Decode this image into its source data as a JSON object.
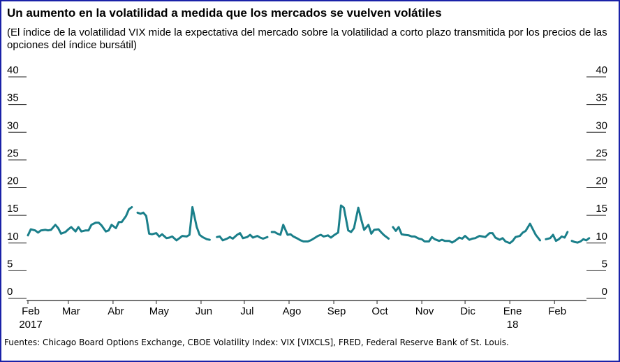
{
  "header": {
    "title": "Un aumento en la volatilidad a medida que los mercados se vuelven volátiles",
    "subtitle": "(El índice de la volatilidad VIX mide la expectativa del mercado sobre la volatilidad a corto plazo transmitida por los precios de las opciones del índice bursátil)"
  },
  "footer": {
    "source": "Fuentes: Chicago Board Options Exchange, CBOE Volatility Index: VIX [VIXCLS], FRED, Federal Reserve Bank of St. Louis."
  },
  "colors": {
    "line": "#1a7f8a",
    "axis": "#222222",
    "border": "#1a22a8"
  },
  "chart_data": {
    "type": "line",
    "ylim": [
      0,
      40
    ],
    "yticks": [
      0,
      5,
      10,
      15,
      20,
      25,
      30,
      35,
      40
    ],
    "grid": false,
    "x_label_rows": [
      [
        "Feb",
        "Mar",
        "Abr",
        "May",
        "Jun",
        "Jul",
        "Ago",
        "Sep",
        "Oct",
        "Nov",
        "Dic",
        "Ene",
        "Feb"
      ],
      [
        "2017",
        "",
        "",
        "",
        "",
        "",
        "",
        "",
        "",
        "",
        "",
        "18",
        ""
      ]
    ],
    "x_tick_dates": [
      "2017-02-01",
      "2017-03-01",
      "2017-04-01",
      "2017-05-01",
      "2017-06-01",
      "2017-07-01",
      "2017-08-01",
      "2017-09-01",
      "2017-10-01",
      "2017-11-01",
      "2017-12-01",
      "2018-01-01",
      "2018-02-01"
    ],
    "xlim": [
      "2017-02-01",
      "2018-02-28"
    ],
    "series": [
      {
        "values": [
          [
            "2017-02-01",
            10.5
          ],
          [
            "2017-02-03",
            11.6
          ],
          [
            "2017-02-06",
            11.4
          ],
          [
            "2017-02-08",
            11.0
          ],
          [
            "2017-02-10",
            11.4
          ],
          [
            "2017-02-13",
            11.5
          ],
          [
            "2017-02-15",
            11.4
          ],
          [
            "2017-02-17",
            11.5
          ],
          [
            "2017-02-20",
            12.4
          ],
          [
            "2017-02-22",
            11.8
          ],
          [
            "2017-02-24",
            10.8
          ],
          [
            "2017-02-27",
            11.1
          ],
          [
            "2017-03-01",
            11.6
          ],
          [
            "2017-03-03",
            12.0
          ],
          [
            "2017-03-06",
            11.2
          ],
          [
            "2017-03-08",
            12.0
          ],
          [
            "2017-03-10",
            11.2
          ],
          [
            "2017-03-13",
            11.4
          ],
          [
            "2017-03-15",
            11.4
          ],
          [
            "2017-03-17",
            12.4
          ],
          [
            "2017-03-20",
            12.8
          ],
          [
            "2017-03-22",
            12.8
          ],
          [
            "2017-03-24",
            12.3
          ],
          [
            "2017-03-27",
            11.2
          ],
          [
            "2017-03-29",
            11.4
          ],
          [
            "2017-03-31",
            12.4
          ],
          [
            "2017-04-03",
            11.8
          ],
          [
            "2017-04-05",
            12.9
          ],
          [
            "2017-04-07",
            12.9
          ],
          [
            "2017-04-10",
            14.0
          ],
          [
            "2017-04-12",
            15.2
          ],
          [
            "2017-04-14",
            15.6
          ],
          null,
          [
            "2017-04-18",
            14.6
          ],
          [
            "2017-04-20",
            14.4
          ],
          [
            "2017-04-22",
            14.6
          ],
          [
            "2017-04-24",
            14.0
          ],
          [
            "2017-04-26",
            10.8
          ],
          [
            "2017-04-28",
            10.7
          ],
          [
            "2017-05-01",
            10.9
          ],
          [
            "2017-05-03",
            10.3
          ],
          [
            "2017-05-05",
            10.7
          ],
          [
            "2017-05-08",
            10.0
          ],
          [
            "2017-05-10",
            10.1
          ],
          [
            "2017-05-12",
            10.3
          ],
          [
            "2017-05-15",
            9.6
          ],
          [
            "2017-05-17",
            10.0
          ],
          [
            "2017-05-19",
            10.4
          ],
          [
            "2017-05-22",
            10.3
          ],
          [
            "2017-05-24",
            10.6
          ],
          [
            "2017-05-26",
            15.6
          ],
          [
            "2017-05-29",
            12.0
          ],
          [
            "2017-05-31",
            10.6
          ],
          [
            "2017-06-02",
            10.2
          ],
          [
            "2017-06-05",
            9.8
          ],
          [
            "2017-06-07",
            9.7
          ],
          null,
          [
            "2017-06-12",
            10.2
          ],
          [
            "2017-06-14",
            10.3
          ],
          [
            "2017-06-16",
            9.6
          ],
          [
            "2017-06-19",
            9.9
          ],
          [
            "2017-06-21",
            10.2
          ],
          [
            "2017-06-23",
            9.9
          ],
          [
            "2017-06-26",
            10.6
          ],
          [
            "2017-06-28",
            10.9
          ],
          [
            "2017-06-30",
            10.0
          ],
          [
            "2017-07-03",
            10.2
          ],
          [
            "2017-07-05",
            10.6
          ],
          [
            "2017-07-07",
            10.1
          ],
          [
            "2017-07-10",
            10.4
          ],
          [
            "2017-07-12",
            10.1
          ],
          [
            "2017-07-14",
            9.9
          ],
          [
            "2017-07-17",
            10.2
          ],
          null,
          [
            "2017-07-20",
            11.1
          ],
          [
            "2017-07-22",
            11.1
          ],
          [
            "2017-07-24",
            10.8
          ],
          [
            "2017-07-26",
            10.6
          ],
          [
            "2017-07-28",
            12.4
          ],
          [
            "2017-07-31",
            10.6
          ],
          [
            "2017-08-02",
            10.7
          ],
          [
            "2017-08-04",
            10.3
          ],
          [
            "2017-08-07",
            9.9
          ],
          [
            "2017-08-09",
            9.6
          ],
          [
            "2017-08-11",
            9.4
          ],
          [
            "2017-08-14",
            9.4
          ],
          [
            "2017-08-16",
            9.6
          ],
          [
            "2017-08-18",
            9.9
          ],
          [
            "2017-08-21",
            10.4
          ],
          [
            "2017-08-23",
            10.6
          ],
          [
            "2017-08-25",
            10.3
          ],
          [
            "2017-08-28",
            10.5
          ],
          [
            "2017-08-30",
            10.1
          ],
          [
            "2017-09-01",
            10.5
          ],
          [
            "2017-09-04",
            11.0
          ],
          [
            "2017-09-06",
            15.9
          ],
          [
            "2017-09-08",
            15.5
          ],
          [
            "2017-09-11",
            11.4
          ],
          [
            "2017-09-13",
            11.1
          ],
          [
            "2017-09-15",
            11.8
          ],
          [
            "2017-09-18",
            15.5
          ],
          [
            "2017-09-20",
            13.4
          ],
          [
            "2017-09-22",
            11.5
          ],
          [
            "2017-09-25",
            12.4
          ],
          [
            "2017-09-27",
            10.8
          ],
          [
            "2017-09-29",
            11.5
          ],
          [
            "2017-10-02",
            11.6
          ],
          [
            "2017-10-04",
            11.0
          ],
          [
            "2017-10-06",
            10.5
          ],
          [
            "2017-10-09",
            9.9
          ],
          null,
          [
            "2017-10-12",
            12.0
          ],
          [
            "2017-10-14",
            11.3
          ],
          [
            "2017-10-16",
            12.0
          ],
          [
            "2017-10-18",
            10.7
          ],
          [
            "2017-10-20",
            10.6
          ],
          [
            "2017-10-23",
            10.5
          ],
          [
            "2017-10-25",
            10.3
          ],
          [
            "2017-10-27",
            10.3
          ],
          [
            "2017-10-30",
            9.9
          ],
          [
            "2017-11-01",
            9.8
          ],
          [
            "2017-11-03",
            9.4
          ],
          [
            "2017-11-06",
            9.4
          ],
          [
            "2017-11-08",
            10.2
          ],
          [
            "2017-11-10",
            9.8
          ],
          [
            "2017-11-13",
            9.5
          ],
          [
            "2017-11-15",
            9.7
          ],
          [
            "2017-11-17",
            9.5
          ],
          [
            "2017-11-20",
            9.5
          ],
          [
            "2017-11-22",
            9.2
          ],
          [
            "2017-11-24",
            9.5
          ],
          [
            "2017-11-27",
            10.1
          ],
          [
            "2017-11-29",
            9.9
          ],
          [
            "2017-12-01",
            10.4
          ],
          [
            "2017-12-04",
            9.7
          ],
          [
            "2017-12-06",
            9.9
          ],
          [
            "2017-12-08",
            10.0
          ],
          [
            "2017-12-11",
            10.4
          ],
          [
            "2017-12-13",
            10.3
          ],
          [
            "2017-12-15",
            10.2
          ],
          [
            "2017-12-18",
            10.9
          ],
          [
            "2017-12-20",
            10.9
          ],
          [
            "2017-12-22",
            10.1
          ],
          [
            "2017-12-25",
            9.7
          ],
          [
            "2017-12-27",
            10.0
          ],
          [
            "2017-12-29",
            9.4
          ],
          [
            "2018-01-01",
            9.1
          ],
          [
            "2018-01-03",
            9.5
          ],
          [
            "2018-01-05",
            10.2
          ],
          [
            "2018-01-08",
            10.4
          ],
          [
            "2018-01-10",
            11.0
          ],
          [
            "2018-01-12",
            11.3
          ],
          [
            "2018-01-15",
            12.6
          ],
          [
            "2018-01-17",
            11.6
          ],
          [
            "2018-01-19",
            10.6
          ],
          [
            "2018-01-22",
            9.6
          ],
          null,
          [
            "2018-01-26",
            9.8
          ],
          [
            "2018-01-29",
            10.0
          ],
          [
            "2018-01-31",
            10.6
          ],
          [
            "2018-02-02",
            9.5
          ],
          [
            "2018-02-04",
            9.8
          ],
          [
            "2018-02-06",
            10.3
          ],
          [
            "2018-02-08",
            10.1
          ],
          [
            "2018-02-10",
            11.1
          ],
          null,
          [
            "2018-02-13",
            9.5
          ],
          [
            "2018-02-15",
            9.3
          ],
          [
            "2018-02-17",
            9.2
          ],
          [
            "2018-02-19",
            9.4
          ],
          [
            "2018-02-21",
            9.8
          ],
          [
            "2018-02-23",
            9.6
          ],
          [
            "2018-02-25",
            10.0
          ]
        ]
      }
    ]
  }
}
